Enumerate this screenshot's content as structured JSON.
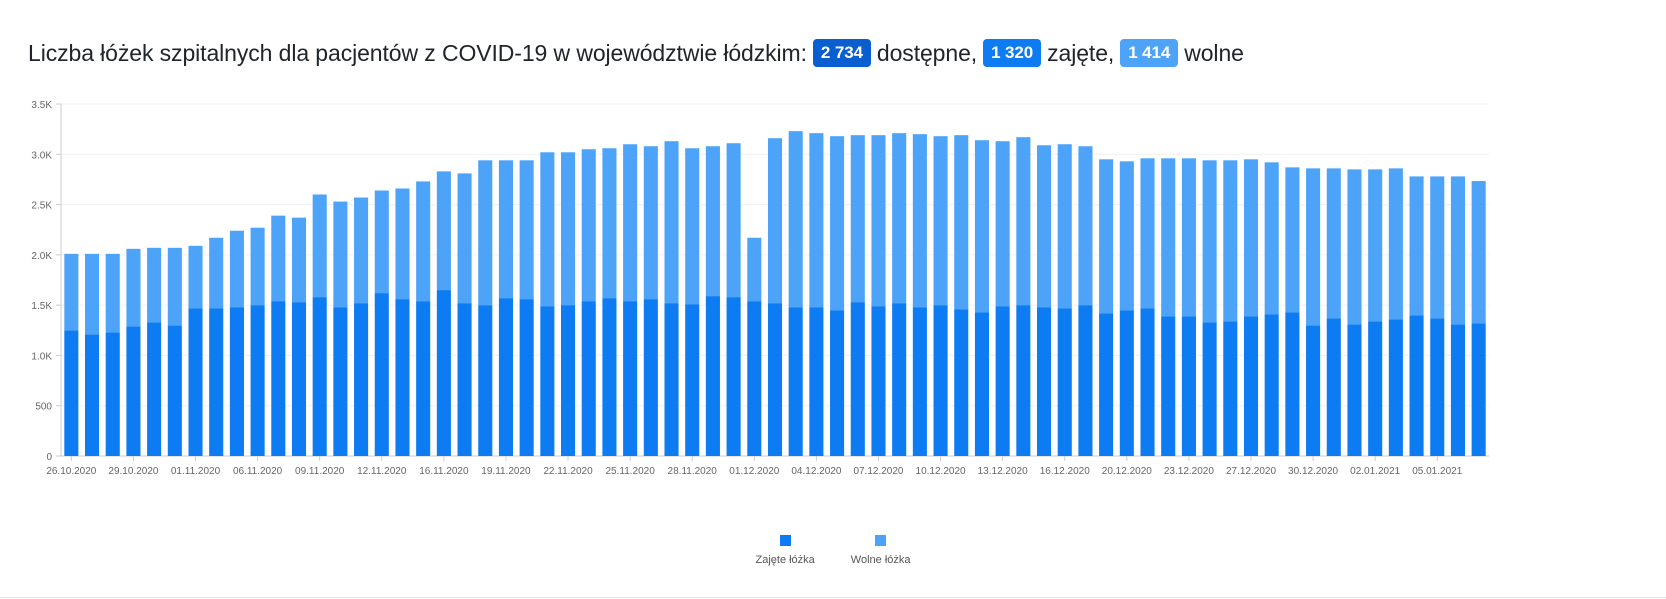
{
  "header": {
    "title_prefix": "Liczba łóżek szpitalnych dla pacjentów z COVID-19 w województwie łódzkim:",
    "available_value": "2 734",
    "available_label": "dostępne,",
    "occupied_value": "1 320",
    "occupied_label": "zajęte,",
    "free_value": "1 414",
    "free_label": "wolne"
  },
  "colors": {
    "occupied": "#0d7bf2",
    "free": "#4da3f8",
    "badge_available": "#0a5fd0",
    "badge_occupied": "#0d7bf2",
    "badge_free": "#4da3f8"
  },
  "chart_data": {
    "type": "bar",
    "stacked": true,
    "ylim": [
      0,
      3500
    ],
    "yticks": [
      "0",
      "500",
      "1.0K",
      "1.5K",
      "2.0K",
      "2.5K",
      "3.0K",
      "3.5K"
    ],
    "ytick_values": [
      0,
      500,
      1000,
      1500,
      2000,
      2500,
      3000,
      3500
    ],
    "x_tick_labels": [
      {
        "index": 0,
        "label": "26.10.2020"
      },
      {
        "index": 3,
        "label": "29.10.2020"
      },
      {
        "index": 6,
        "label": "01.11.2020"
      },
      {
        "index": 9,
        "label": "06.11.2020"
      },
      {
        "index": 12,
        "label": "09.11.2020"
      },
      {
        "index": 15,
        "label": "12.11.2020"
      },
      {
        "index": 18,
        "label": "16.11.2020"
      },
      {
        "index": 21,
        "label": "19.11.2020"
      },
      {
        "index": 24,
        "label": "22.11.2020"
      },
      {
        "index": 27,
        "label": "25.11.2020"
      },
      {
        "index": 30,
        "label": "28.11.2020"
      },
      {
        "index": 33,
        "label": "01.12.2020"
      },
      {
        "index": 36,
        "label": "04.12.2020"
      },
      {
        "index": 39,
        "label": "07.12.2020"
      },
      {
        "index": 42,
        "label": "10.12.2020"
      },
      {
        "index": 45,
        "label": "13.12.2020"
      },
      {
        "index": 48,
        "label": "16.12.2020"
      },
      {
        "index": 51,
        "label": "20.12.2020"
      },
      {
        "index": 54,
        "label": "23.12.2020"
      },
      {
        "index": 57,
        "label": "27.12.2020"
      },
      {
        "index": 60,
        "label": "30.12.2020"
      },
      {
        "index": 63,
        "label": "02.01.2021"
      },
      {
        "index": 66,
        "label": "05.01.2021"
      }
    ],
    "series": [
      {
        "name": "Zajęte łóżka",
        "values": [
          1250,
          1210,
          1230,
          1290,
          1330,
          1300,
          1470,
          1470,
          1480,
          1500,
          1540,
          1530,
          1580,
          1480,
          1520,
          1620,
          1560,
          1540,
          1650,
          1520,
          1500,
          1570,
          1560,
          1490,
          1500,
          1540,
          1570,
          1540,
          1560,
          1520,
          1510,
          1590,
          1580,
          1540,
          1520,
          1480,
          1480,
          1450,
          1530,
          1490,
          1520,
          1480,
          1500,
          1460,
          1430,
          1490,
          1500,
          1480,
          1470,
          1500,
          1420,
          1450,
          1470,
          1390,
          1390,
          1330,
          1340,
          1390,
          1410,
          1430,
          1300,
          1370,
          1310,
          1340,
          1360,
          1400,
          1370,
          1310,
          1320
        ]
      },
      {
        "name": "Wolne łóżka",
        "values": [
          760,
          800,
          780,
          770,
          740,
          770,
          620,
          700,
          760,
          770,
          850,
          840,
          1020,
          1050,
          1050,
          1020,
          1100,
          1190,
          1180,
          1290,
          1440,
          1370,
          1380,
          1530,
          1520,
          1510,
          1490,
          1560,
          1520,
          1610,
          1550,
          1490,
          1530,
          630,
          1640,
          1750,
          1730,
          1730,
          1660,
          1700,
          1690,
          1720,
          1680,
          1730,
          1710,
          1640,
          1670,
          1610,
          1630,
          1580,
          1530,
          1480,
          1490,
          1570,
          1570,
          1610,
          1600,
          1560,
          1510,
          1440,
          1560,
          1490,
          1540,
          1510,
          1500,
          1380,
          1410,
          1470,
          1414
        ]
      }
    ]
  },
  "legend": {
    "occupied_label": "Zajęte łóżka",
    "free_label": "Wolne łóżka"
  }
}
